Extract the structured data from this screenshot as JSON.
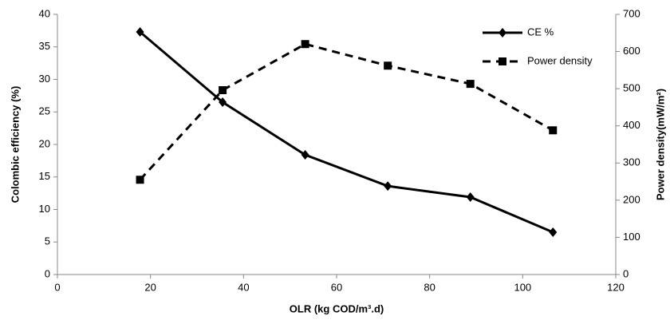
{
  "chart_data": {
    "type": "line",
    "x_label": "OLR (kg COD/m³.d)",
    "y_label": "Colombic efficiency (%)",
    "y2_label": "Power density(mW/m²)",
    "x": [
      17.75,
      35.5,
      53.25,
      71,
      88.75,
      106.5
    ],
    "series": [
      {
        "name": "CE %",
        "color": "#000000",
        "marker": "diamond",
        "dashed": false,
        "values": [
          37.3,
          26.5,
          18.4,
          13.6,
          11.9,
          6.5
        ]
      },
      {
        "name": "Power density",
        "color": "#000000",
        "marker": "square",
        "dashed": true,
        "axis": "y2",
        "values": [
          255,
          496,
          620,
          562,
          513,
          388
        ]
      }
    ],
    "xlim": [
      0,
      120
    ],
    "xticks": [
      0,
      20,
      40,
      60,
      80,
      100,
      120
    ],
    "ylim": [
      0,
      40
    ],
    "yticks": [
      0,
      5,
      10,
      15,
      20,
      25,
      30,
      35,
      40
    ],
    "y2lim": [
      0,
      700
    ],
    "y2ticks": [
      0,
      100,
      200,
      300,
      400,
      500,
      600,
      700
    ],
    "grid": false,
    "legend": "top-right"
  }
}
